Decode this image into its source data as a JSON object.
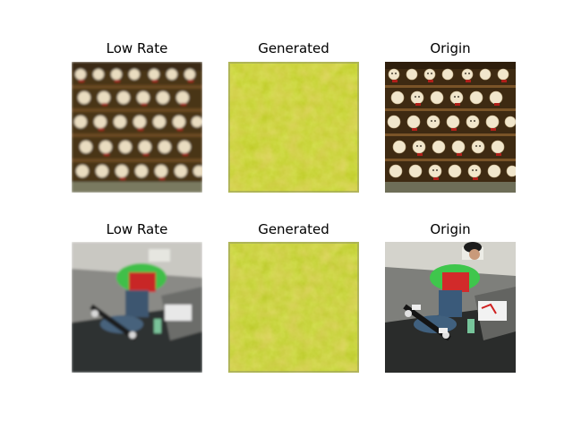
{
  "figure": {
    "rows": [
      {
        "panels": [
          {
            "title": "Low Rate",
            "subject": "shelves-of-teddy-bears",
            "quality": "blurred"
          },
          {
            "title": "Generated",
            "subject": "yellow-green-noise-texture",
            "quality": "noisy"
          },
          {
            "title": "Origin",
            "subject": "shelves-of-teddy-bears",
            "quality": "sharp"
          }
        ]
      },
      {
        "panels": [
          {
            "title": "Low Rate",
            "subject": "skateboarder-jumping",
            "quality": "blurred"
          },
          {
            "title": "Generated",
            "subject": "yellow-green-noise-texture",
            "quality": "noisy"
          },
          {
            "title": "Origin",
            "subject": "skateboarder-jumping",
            "quality": "sharp"
          }
        ]
      }
    ]
  }
}
